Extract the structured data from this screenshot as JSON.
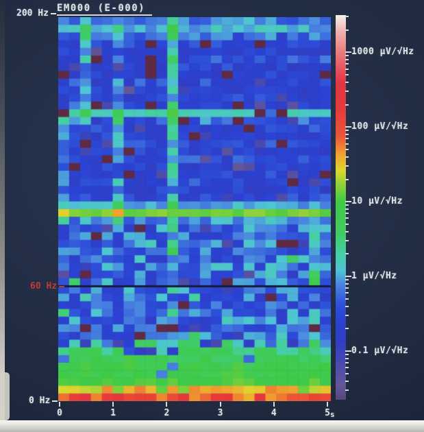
{
  "screen": {
    "background": "#212c42",
    "text_color": "#dfe3e2",
    "accent_red": "#c23a33",
    "tick_color": "#d8dadc"
  },
  "chart_data": {
    "type": "heatmap",
    "subtype": "spectrogram",
    "title": "EM000 (E-000)",
    "x": {
      "label_unit": "s",
      "min": 0,
      "max": 5,
      "ticks": [
        0,
        1,
        2,
        3,
        4,
        5
      ],
      "unit_suffix": "s"
    },
    "y": {
      "unit": "Hz",
      "min": 0,
      "max": 200,
      "labels": [
        {
          "text": "200 Hz",
          "freq": 200,
          "color": "#dfe3e2"
        },
        {
          "text": "60 Hz",
          "freq": 60,
          "color": "#c23a33"
        },
        {
          "text": "0 Hz",
          "freq": 0,
          "color": "#dfe3e2"
        }
      ]
    },
    "colorbar": {
      "unit": "μV/√Hz",
      "tick_labels": [
        {
          "value": 1000,
          "text": "1000"
        },
        {
          "value": 100,
          "text": "100"
        },
        {
          "value": 10,
          "text": "10"
        },
        {
          "value": 1,
          "text": "1"
        },
        {
          "value": 0.1,
          "text": "0.1"
        }
      ],
      "log_top": 3.5,
      "log_bottom": -1.65,
      "colormap": [
        {
          "t": 0.0,
          "c": "#55477e"
        },
        {
          "t": 0.041,
          "c": "#63579a"
        },
        {
          "t": 0.094,
          "c": "#4a4aae"
        },
        {
          "t": 0.15,
          "c": "#303ec4"
        },
        {
          "t": 0.21,
          "c": "#2b42d2"
        },
        {
          "t": 0.247,
          "c": "#2e4fd8"
        },
        {
          "t": 0.301,
          "c": "#4a86e0"
        },
        {
          "t": 0.336,
          "c": "#4fc4d4"
        },
        {
          "t": 0.381,
          "c": "#46cfa2"
        },
        {
          "t": 0.43,
          "c": "#41cc66"
        },
        {
          "t": 0.514,
          "c": "#3fca46"
        },
        {
          "t": 0.559,
          "c": "#8ed238"
        },
        {
          "t": 0.594,
          "c": "#ddd82e"
        },
        {
          "t": 0.638,
          "c": "#f0a22e"
        },
        {
          "t": 0.683,
          "c": "#ea5838"
        },
        {
          "t": 0.755,
          "c": "#e43b3b"
        },
        {
          "t": 0.825,
          "c": "#e23545"
        },
        {
          "t": 0.906,
          "c": "#e87f7f"
        },
        {
          "t": 0.96,
          "c": "#f0b4b4"
        },
        {
          "t": 1.0,
          "c": "#f6f2ec"
        }
      ]
    },
    "grid": {
      "cols": 25,
      "rows": 50,
      "seed": 42
    },
    "row_profile_log10": [
      -0.15,
      0.05,
      -0.2,
      -0.55,
      -0.6,
      -0.45,
      -0.6,
      -0.62,
      -0.5,
      -0.62,
      -0.58,
      -0.45,
      0.25,
      -0.25,
      -0.55,
      -0.62,
      -0.55,
      -0.62,
      -0.5,
      -0.62,
      -0.58,
      -0.5,
      -0.62,
      -0.55,
      0.0,
      1.15,
      -0.1,
      -0.35,
      -0.4,
      -0.32,
      -0.38,
      -0.35,
      -0.3,
      -0.38,
      -0.35,
      -0.35,
      -0.38,
      -0.32,
      -0.35,
      -0.3,
      -0.35,
      -0.25,
      0.2,
      0.5,
      0.75,
      0.9,
      0.95,
      1.0,
      1.45,
      2.0
    ],
    "row_noise_amp": [
      0.25,
      0.18,
      0.25,
      0.3,
      0.3,
      0.32,
      0.3,
      0.28,
      0.32,
      0.28,
      0.3,
      0.32,
      0.15,
      0.28,
      0.3,
      0.28,
      0.3,
      0.28,
      0.32,
      0.28,
      0.3,
      0.32,
      0.28,
      0.3,
      0.15,
      0.1,
      0.25,
      0.45,
      0.45,
      0.48,
      0.45,
      0.48,
      0.45,
      0.45,
      0.45,
      0.45,
      0.48,
      0.45,
      0.48,
      0.45,
      0.45,
      0.45,
      0.45,
      0.35,
      0.28,
      0.18,
      0.15,
      0.15,
      0.35,
      0.45
    ],
    "vertical_stripes": [
      {
        "t_start": 2.0,
        "t_end": 2.2,
        "row_start": 0,
        "row_end": 24,
        "boost": 0.75
      },
      {
        "t_start": 2.0,
        "t_end": 2.2,
        "row_start": 26,
        "row_end": 41,
        "boost": 0.4
      },
      {
        "t_start": 1.0,
        "t_end": 1.2,
        "row_start": 10,
        "row_end": 27,
        "boost": 0.55
      },
      {
        "t_start": 1.0,
        "t_end": 1.2,
        "row_start": 0,
        "row_end": 9,
        "boost": 0.25
      },
      {
        "t_start": 0.4,
        "t_end": 0.6,
        "row_start": 0,
        "row_end": 13,
        "boost": 0.5
      },
      {
        "t_start": 0.0,
        "t_end": 0.2,
        "row_start": 12,
        "row_end": 26,
        "boost": 0.35
      },
      {
        "t_start": 4.6,
        "t_end": 4.8,
        "row_start": 27,
        "row_end": 41,
        "boost": 0.35
      },
      {
        "t_start": 3.8,
        "t_end": 4.0,
        "row_start": 30,
        "row_end": 41,
        "boost": 0.3
      }
    ],
    "speckles": {
      "maroon": {
        "prob": 0.045,
        "color": "#5e2a44",
        "ranges": [
          [
            3,
            23
          ],
          [
            27,
            41
          ]
        ]
      },
      "dark": {
        "prob": 0.07,
        "drop": 0.6,
        "ranges": [
          [
            2,
            23
          ],
          [
            27,
            41
          ]
        ]
      },
      "bright": {
        "prob": 0.09,
        "boost": 0.5,
        "ranges": [
          [
            27,
            41
          ]
        ]
      },
      "green_blue": {
        "row_start": 42,
        "row_end": 47,
        "probs": [
          0.28,
          0.22,
          0.15,
          0.1,
          0.08,
          0.06
        ],
        "drop": 1.2
      }
    },
    "notch_line": {
      "freq": 60,
      "color": "#141c38"
    }
  }
}
